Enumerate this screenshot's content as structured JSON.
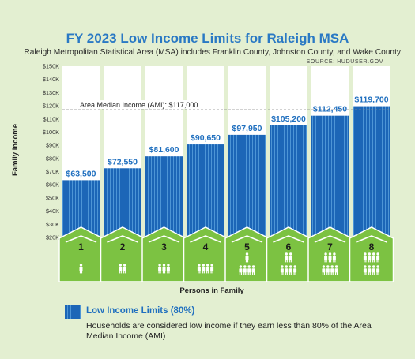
{
  "header": {
    "title": "FY 2023 Low Income Limits for Raleigh MSA",
    "subtitle": "Raleigh Metropolitan Statistical Area (MSA) includes Franklin County, Johnston County, and Wake County",
    "source": "SOURCE: HUDUSER.GOV"
  },
  "colors": {
    "background": "#e3efd1",
    "bar": "#1c66b7",
    "bar_highlight": "#4d95d6",
    "house": "#7cc242",
    "house_stroke": "#ffffff",
    "title": "#2a79c4",
    "value_label": "#1f6fbf"
  },
  "chart_data": {
    "type": "bar",
    "title": "FY 2023 Low Income Limits for Raleigh MSA",
    "xlabel": "Persons in Family",
    "ylabel": "Family Income",
    "categories": [
      "1",
      "2",
      "3",
      "4",
      "5",
      "6",
      "7",
      "8"
    ],
    "values": [
      63500,
      72550,
      81600,
      90650,
      97950,
      105200,
      112450,
      119700
    ],
    "value_labels": [
      "$63,500",
      "$72,550",
      "$81,600",
      "$90,650",
      "$97,950",
      "$105,200",
      "$112,450",
      "$119,700"
    ],
    "ylim": [
      20000,
      150000
    ],
    "yticks": [
      20000,
      30000,
      40000,
      50000,
      60000,
      70000,
      80000,
      90000,
      100000,
      110000,
      120000,
      130000,
      140000,
      150000
    ],
    "ytick_labels": [
      "$20K",
      "$30K",
      "$40K",
      "$50K",
      "$60K",
      "$70K",
      "$80K",
      "$90K",
      "$100K",
      "$110K",
      "$120K",
      "$130K",
      "$140K",
      "$150K"
    ],
    "reference_line": {
      "value": 117000,
      "label": "Area Median Income (AMI): $117,000"
    },
    "grid": false,
    "icons": "person-icon repeated per family size inside each house"
  },
  "legend": {
    "label": "Low Income Limits (80%)",
    "note": "Households are considered low income if they earn less than 80% of the Area Median Income (AMI)"
  }
}
